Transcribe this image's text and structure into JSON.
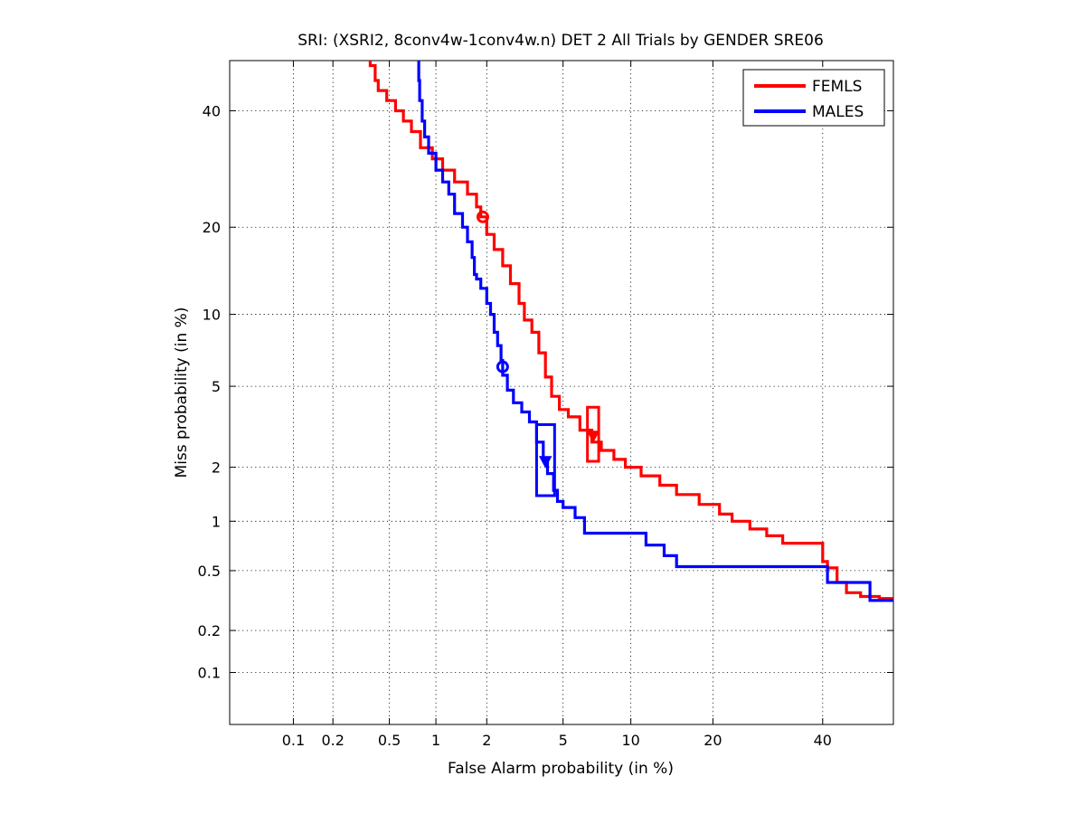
{
  "chart_data": {
    "type": "line",
    "title": "SRI: (XSRI2, 8conv4w-1conv4w.n) DET 2 All Trials by GENDER SRE06",
    "xlabel": "False Alarm probability (in %)",
    "ylabel": "Miss probability (in %)",
    "scale": "normal-deviate (probit) on both axes",
    "xlim": [
      0.03,
      55
    ],
    "ylim": [
      0.04,
      50
    ],
    "x_ticks": [
      0.1,
      0.2,
      0.5,
      1,
      2,
      5,
      10,
      20,
      40
    ],
    "x_tick_labels": [
      "0.1",
      "0.2",
      "0.5",
      "1",
      "2",
      "5",
      "10",
      "20",
      "40"
    ],
    "y_ticks": [
      0.1,
      0.2,
      0.5,
      1,
      2,
      5,
      10,
      20,
      40
    ],
    "y_tick_labels": [
      "0.1",
      "0.2",
      "0.5",
      "1",
      "2",
      "5",
      "10",
      "20",
      "40"
    ],
    "grid": "dotted",
    "legend_position": "top-right",
    "series": [
      {
        "name": "FEMLS",
        "color": "#ff0000",
        "points": [
          [
            0.37,
            50
          ],
          [
            0.4,
            49
          ],
          [
            0.42,
            46
          ],
          [
            0.48,
            44
          ],
          [
            0.55,
            42
          ],
          [
            0.62,
            40
          ],
          [
            0.7,
            38
          ],
          [
            0.8,
            36
          ],
          [
            0.95,
            33
          ],
          [
            1.1,
            31
          ],
          [
            1.3,
            29
          ],
          [
            1.55,
            27
          ],
          [
            1.75,
            25
          ],
          [
            1.85,
            23
          ],
          [
            2.0,
            21.5
          ],
          [
            2.2,
            19
          ],
          [
            2.45,
            17
          ],
          [
            2.7,
            15
          ],
          [
            3.0,
            13
          ],
          [
            3.2,
            11
          ],
          [
            3.5,
            9.5
          ],
          [
            3.8,
            8.5
          ],
          [
            4.1,
            7
          ],
          [
            4.4,
            5.5
          ],
          [
            4.8,
            4.5
          ],
          [
            5.3,
            3.9
          ],
          [
            6.0,
            3.6
          ],
          [
            6.8,
            3.1
          ],
          [
            7.5,
            2.7
          ],
          [
            8.5,
            2.45
          ],
          [
            9.5,
            2.2
          ],
          [
            11,
            2.0
          ],
          [
            13,
            1.8
          ],
          [
            15,
            1.6
          ],
          [
            18,
            1.42
          ],
          [
            21,
            1.25
          ],
          [
            23,
            1.1
          ],
          [
            26,
            1.0
          ],
          [
            29,
            0.9
          ],
          [
            32,
            0.82
          ],
          [
            36,
            0.74
          ],
          [
            40,
            0.74
          ],
          [
            41,
            0.57
          ],
          [
            43,
            0.52
          ],
          [
            45,
            0.42
          ],
          [
            48,
            0.36
          ],
          [
            52,
            0.34
          ],
          [
            55,
            0.33
          ]
        ],
        "operating_point_circle": [
          1.9,
          21.5
        ],
        "operating_point_marker": [
          6.9,
          2.9
        ],
        "confidence_box": {
          "x": [
            6.5,
            7.3
          ],
          "y": [
            2.15,
            4.0
          ]
        }
      },
      {
        "name": "MALES",
        "color": "#0000ff",
        "points": [
          [
            0.78,
            50
          ],
          [
            0.79,
            46
          ],
          [
            0.82,
            42
          ],
          [
            0.85,
            38
          ],
          [
            0.9,
            35
          ],
          [
            1.0,
            32
          ],
          [
            1.1,
            29
          ],
          [
            1.2,
            27
          ],
          [
            1.3,
            25
          ],
          [
            1.45,
            22
          ],
          [
            1.55,
            20
          ],
          [
            1.65,
            18
          ],
          [
            1.7,
            16
          ],
          [
            1.75,
            14
          ],
          [
            1.85,
            13.5
          ],
          [
            2.0,
            12.5
          ],
          [
            2.1,
            11
          ],
          [
            2.2,
            10
          ],
          [
            2.3,
            8.5
          ],
          [
            2.4,
            7.5
          ],
          [
            2.45,
            6.5
          ],
          [
            2.6,
            5.6
          ],
          [
            2.8,
            4.8
          ],
          [
            3.1,
            4.2
          ],
          [
            3.4,
            3.8
          ],
          [
            3.7,
            3.4
          ],
          [
            4.0,
            2.7
          ],
          [
            4.2,
            2.2
          ],
          [
            4.5,
            1.85
          ],
          [
            4.7,
            1.5
          ],
          [
            5.0,
            1.3
          ],
          [
            5.7,
            1.2
          ],
          [
            6.3,
            1.05
          ],
          [
            6.6,
            0.85
          ],
          [
            8,
            0.85
          ],
          [
            11.5,
            0.85
          ],
          [
            11.6,
            0.72
          ],
          [
            13.5,
            0.72
          ],
          [
            13.6,
            0.62
          ],
          [
            15,
            0.62
          ],
          [
            15.1,
            0.53
          ],
          [
            20,
            0.53
          ],
          [
            30,
            0.53
          ],
          [
            41,
            0.53
          ],
          [
            41.5,
            0.42
          ],
          [
            50,
            0.42
          ],
          [
            52,
            0.32
          ],
          [
            55,
            0.32
          ]
        ],
        "operating_point_circle": [
          2.45,
          6.1
        ],
        "operating_point_marker": [
          4.1,
          2.15
        ],
        "confidence_box": {
          "x": [
            3.7,
            4.55
          ],
          "y": [
            1.4,
            3.3
          ]
        }
      }
    ]
  }
}
